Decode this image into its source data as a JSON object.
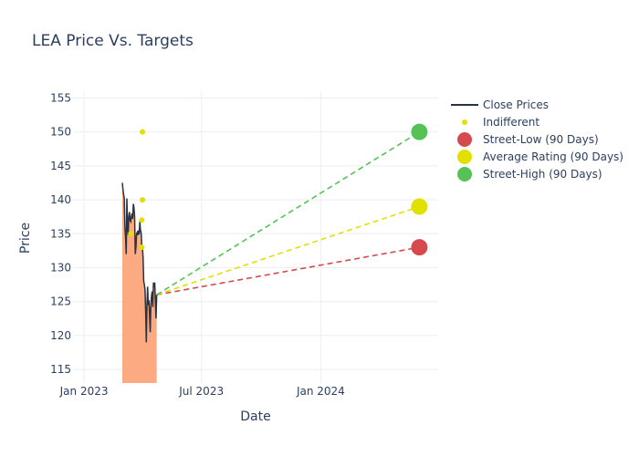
{
  "chart_data": {
    "type": "line",
    "title": "LEA Price Vs. Targets",
    "xlabel": "Date",
    "ylabel": "Price",
    "xlim": [
      "2022-12-15",
      "2024-06-30"
    ],
    "ylim": [
      113,
      156
    ],
    "x_ticks": [
      {
        "date": "2023-01-01",
        "label": "Jan 2023"
      },
      {
        "date": "2023-07-01",
        "label": "Jul 2023"
      },
      {
        "date": "2024-01-01",
        "label": "Jan 2024"
      }
    ],
    "y_ticks": [
      115,
      120,
      125,
      130,
      135,
      140,
      145,
      150,
      155
    ],
    "grid": true,
    "legend_position": "top-right",
    "colors": {
      "close": "#2a3341",
      "fill": "#fcaa82",
      "indifferent": "#e1e000",
      "low": "#d64a4e",
      "avg": "#e1e000",
      "high": "#55c255"
    },
    "series": [
      {
        "name": "Close Prices",
        "style": "line-with-area-fill",
        "points": [
          [
            "2023-03-01",
            142.5
          ],
          [
            "2023-03-02",
            141.5
          ],
          [
            "2023-03-03",
            140.8
          ],
          [
            "2023-03-04",
            140.2
          ],
          [
            "2023-03-05",
            136.0
          ],
          [
            "2023-03-06",
            134.5
          ],
          [
            "2023-03-07",
            132.0
          ],
          [
            "2023-03-08",
            140.2
          ],
          [
            "2023-03-09",
            136.5
          ],
          [
            "2023-03-10",
            134.8
          ],
          [
            "2023-03-11",
            137.5
          ],
          [
            "2023-03-12",
            138.2
          ],
          [
            "2023-03-13",
            137.0
          ],
          [
            "2023-03-14",
            136.8
          ],
          [
            "2023-03-15",
            137.5
          ],
          [
            "2023-03-16",
            138.0
          ],
          [
            "2023-03-17",
            137.2
          ],
          [
            "2023-03-18",
            139.4
          ],
          [
            "2023-03-19",
            138.8
          ],
          [
            "2023-03-20",
            137.5
          ],
          [
            "2023-03-21",
            132.0
          ],
          [
            "2023-03-22",
            133.0
          ],
          [
            "2023-03-23",
            135.0
          ],
          [
            "2023-03-24",
            135.2
          ],
          [
            "2023-03-25",
            134.8
          ],
          [
            "2023-03-26",
            135.5
          ],
          [
            "2023-03-27",
            134.9
          ],
          [
            "2023-03-28",
            136.8
          ],
          [
            "2023-03-29",
            135.5
          ],
          [
            "2023-03-30",
            135.2
          ],
          [
            "2023-03-31",
            133.2
          ],
          [
            "2023-04-01",
            133.0
          ],
          [
            "2023-04-02",
            131.5
          ],
          [
            "2023-04-03",
            128.0
          ],
          [
            "2023-04-04",
            127.5
          ],
          [
            "2023-04-05",
            126.8
          ],
          [
            "2023-04-06",
            123.5
          ],
          [
            "2023-04-07",
            119.0
          ],
          [
            "2023-04-08",
            124.5
          ],
          [
            "2023-04-09",
            127.2
          ],
          [
            "2023-04-10",
            124.5
          ],
          [
            "2023-04-11",
            125.2
          ],
          [
            "2023-04-12",
            123.0
          ],
          [
            "2023-04-13",
            120.5
          ],
          [
            "2023-04-14",
            124.5
          ],
          [
            "2023-04-15",
            125.8
          ],
          [
            "2023-04-16",
            126.5
          ],
          [
            "2023-04-17",
            124.2
          ],
          [
            "2023-04-18",
            127.8
          ],
          [
            "2023-04-19",
            127.5
          ],
          [
            "2023-04-20",
            127.8
          ],
          [
            "2023-04-21",
            125.0
          ],
          [
            "2023-04-22",
            122.5
          ],
          [
            "2023-04-23",
            126.0
          ]
        ]
      },
      {
        "name": "Indifferent",
        "style": "markers",
        "points": [
          [
            "2023-03-14",
            135
          ],
          [
            "2023-04-01",
            150
          ],
          [
            "2023-04-01",
            140
          ],
          [
            "2023-03-31",
            137
          ],
          [
            "2023-03-31",
            133
          ]
        ]
      },
      {
        "name": "Street-Low (90 Days)",
        "style": "dashed-projection",
        "from": [
          "2023-04-23",
          126.0
        ],
        "to": [
          "2024-06-01",
          133.0
        ]
      },
      {
        "name": "Average Rating (90 Days)",
        "style": "dashed-projection",
        "from": [
          "2023-04-23",
          126.0
        ],
        "to": [
          "2024-06-01",
          139.0
        ]
      },
      {
        "name": "Street-High (90 Days)",
        "style": "dashed-projection",
        "from": [
          "2023-04-23",
          126.0
        ],
        "to": [
          "2024-06-01",
          150.0
        ]
      }
    ]
  }
}
